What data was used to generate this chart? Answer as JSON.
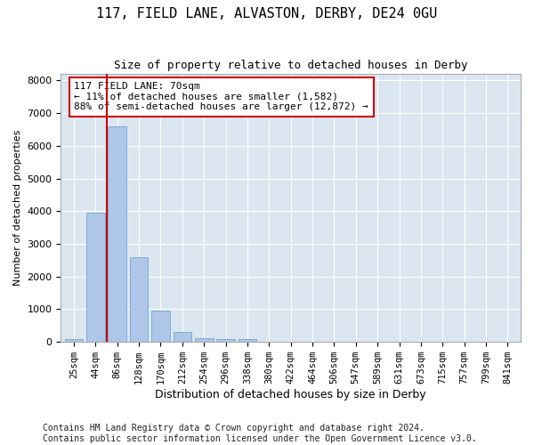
{
  "title": "117, FIELD LANE, ALVASTON, DERBY, DE24 0GU",
  "subtitle": "Size of property relative to detached houses in Derby",
  "xlabel": "Distribution of detached houses by size in Derby",
  "ylabel": "Number of detached properties",
  "categories": [
    "25sqm",
    "44sqm",
    "86sqm",
    "128sqm",
    "170sqm",
    "212sqm",
    "254sqm",
    "296sqm",
    "338sqm",
    "380sqm",
    "422sqm",
    "464sqm",
    "506sqm",
    "547sqm",
    "589sqm",
    "631sqm",
    "673sqm",
    "715sqm",
    "757sqm",
    "799sqm",
    "841sqm"
  ],
  "values": [
    80,
    3950,
    6600,
    2600,
    950,
    300,
    115,
    100,
    80,
    0,
    0,
    0,
    0,
    0,
    0,
    0,
    0,
    0,
    0,
    0,
    0
  ],
  "bar_color": "#aec6e8",
  "bar_edge_color": "#7dadd4",
  "vline_color": "#cc0000",
  "annotation_text": "117 FIELD LANE: 70sqm\n← 11% of detached houses are smaller (1,582)\n88% of semi-detached houses are larger (12,872) →",
  "annotation_box_color": "#ffffff",
  "annotation_box_edge": "#cc0000",
  "ylim": [
    0,
    8200
  ],
  "plot_bg_color": "#dce6f1",
  "footer": "Contains HM Land Registry data © Crown copyright and database right 2024.\nContains public sector information licensed under the Open Government Licence v3.0.",
  "title_fontsize": 11,
  "subtitle_fontsize": 9,
  "footer_fontsize": 7,
  "ylabel_fontsize": 8,
  "xlabel_fontsize": 9,
  "tick_fontsize": 7.5,
  "ytick_fontsize": 8
}
